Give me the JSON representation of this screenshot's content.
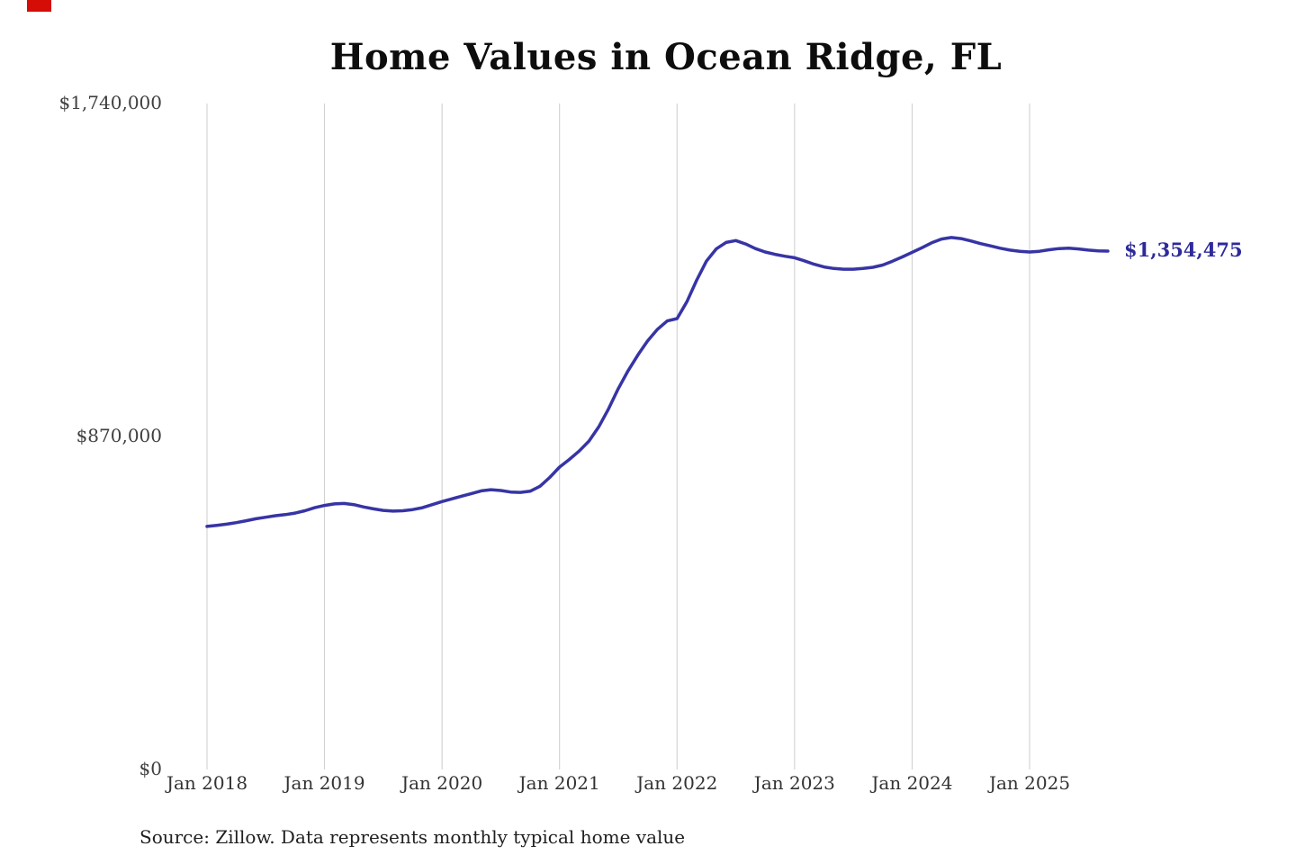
{
  "page": {
    "title": "Home Values in Ocean Ridge, FL",
    "source_note": "Source: Zillow. Data represents monthly typical home value"
  },
  "colors": {
    "line": "#3734a5",
    "grid": "#cccccc",
    "annotation": "#2d2a9b",
    "corner_mark": "#d40d06"
  },
  "chart_data": {
    "type": "line",
    "title": "Home Values in Ocean Ridge, FL",
    "series_name": "Monthly typical home value",
    "frequency": "monthly",
    "x_start": "2018-01",
    "x_end": "2025-09",
    "x_ticks": [
      "Jan 2018",
      "Jan 2019",
      "Jan 2020",
      "Jan 2021",
      "Jan 2022",
      "Jan 2023",
      "Jan 2024",
      "Jan 2025"
    ],
    "y_ticks": [
      {
        "value": 0,
        "label": "$0"
      },
      {
        "value": 870000,
        "label": "$870,000"
      },
      {
        "value": 1740000,
        "label": "$1,740,000"
      }
    ],
    "ylim": [
      0,
      1740000
    ],
    "grid": "vertical-only",
    "legend": "none",
    "annotation": {
      "text": "$1,354,475",
      "value": 1354475
    },
    "values": [
      635000,
      638000,
      641000,
      645000,
      650000,
      655000,
      659000,
      663000,
      666000,
      670000,
      676000,
      684000,
      690000,
      694000,
      695000,
      692000,
      686000,
      681000,
      677000,
      675000,
      676000,
      679000,
      684000,
      692000,
      700000,
      707000,
      714000,
      721000,
      728000,
      731000,
      729000,
      725000,
      724000,
      727000,
      740000,
      763000,
      790000,
      810000,
      832000,
      858000,
      895000,
      942000,
      995000,
      1042000,
      1083000,
      1120000,
      1150000,
      1172000,
      1178000,
      1222000,
      1278000,
      1328000,
      1360000,
      1377000,
      1382000,
      1373000,
      1361000,
      1352000,
      1346000,
      1341000,
      1337000,
      1329000,
      1320000,
      1313000,
      1309000,
      1307000,
      1307000,
      1309000,
      1312000,
      1318000,
      1328000,
      1339000,
      1351000,
      1363000,
      1376000,
      1386000,
      1390000,
      1387000,
      1381000,
      1374000,
      1368000,
      1362000,
      1357000,
      1354000,
      1352000,
      1354000,
      1358000,
      1361000,
      1362000,
      1360000,
      1357000,
      1355000,
      1354475
    ]
  }
}
